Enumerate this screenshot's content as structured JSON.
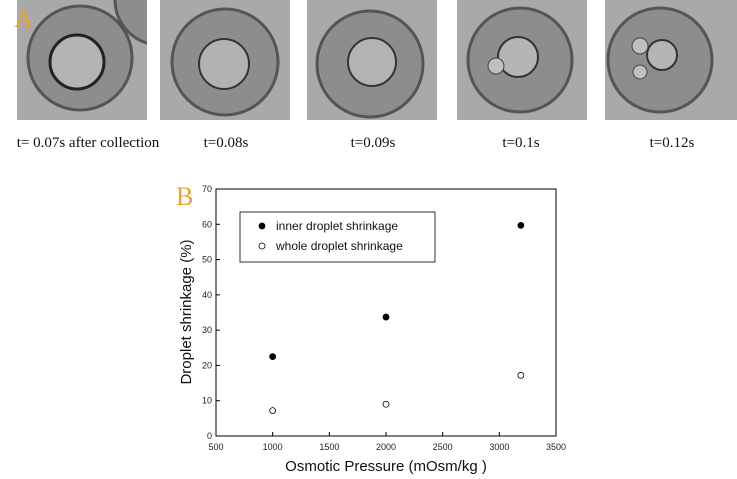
{
  "panels": {
    "a": {
      "label": "A",
      "captions": [
        "t= 0.07s after collection",
        "t=0.08s",
        "t=0.09s",
        "t=0.1s",
        "t=0.12s"
      ]
    },
    "b": {
      "label": "B"
    }
  },
  "chart_data": {
    "type": "scatter",
    "xlabel": "Osmotic Pressure (mOsm/kg )",
    "ylabel": "Droplet shrinkage (%)",
    "xlim": [
      500,
      3500
    ],
    "xticks": [
      500,
      1000,
      1500,
      2000,
      2500,
      3000,
      3500
    ],
    "ylim": [
      0,
      70
    ],
    "yticks": [
      0,
      10,
      20,
      30,
      40,
      50,
      60,
      70
    ],
    "legend": "upper left",
    "series": [
      {
        "name": "inner droplet shrinkage",
        "color": "#000000",
        "filled": true,
        "x": [
          1000,
          2000,
          3190
        ],
        "values": [
          22.5,
          33.7,
          59.7
        ]
      },
      {
        "name": "whole droplet shrinkage",
        "color": "#000000",
        "filled": false,
        "x": [
          1000,
          2000,
          3190
        ],
        "values": [
          7.2,
          9,
          17.2
        ]
      }
    ]
  }
}
